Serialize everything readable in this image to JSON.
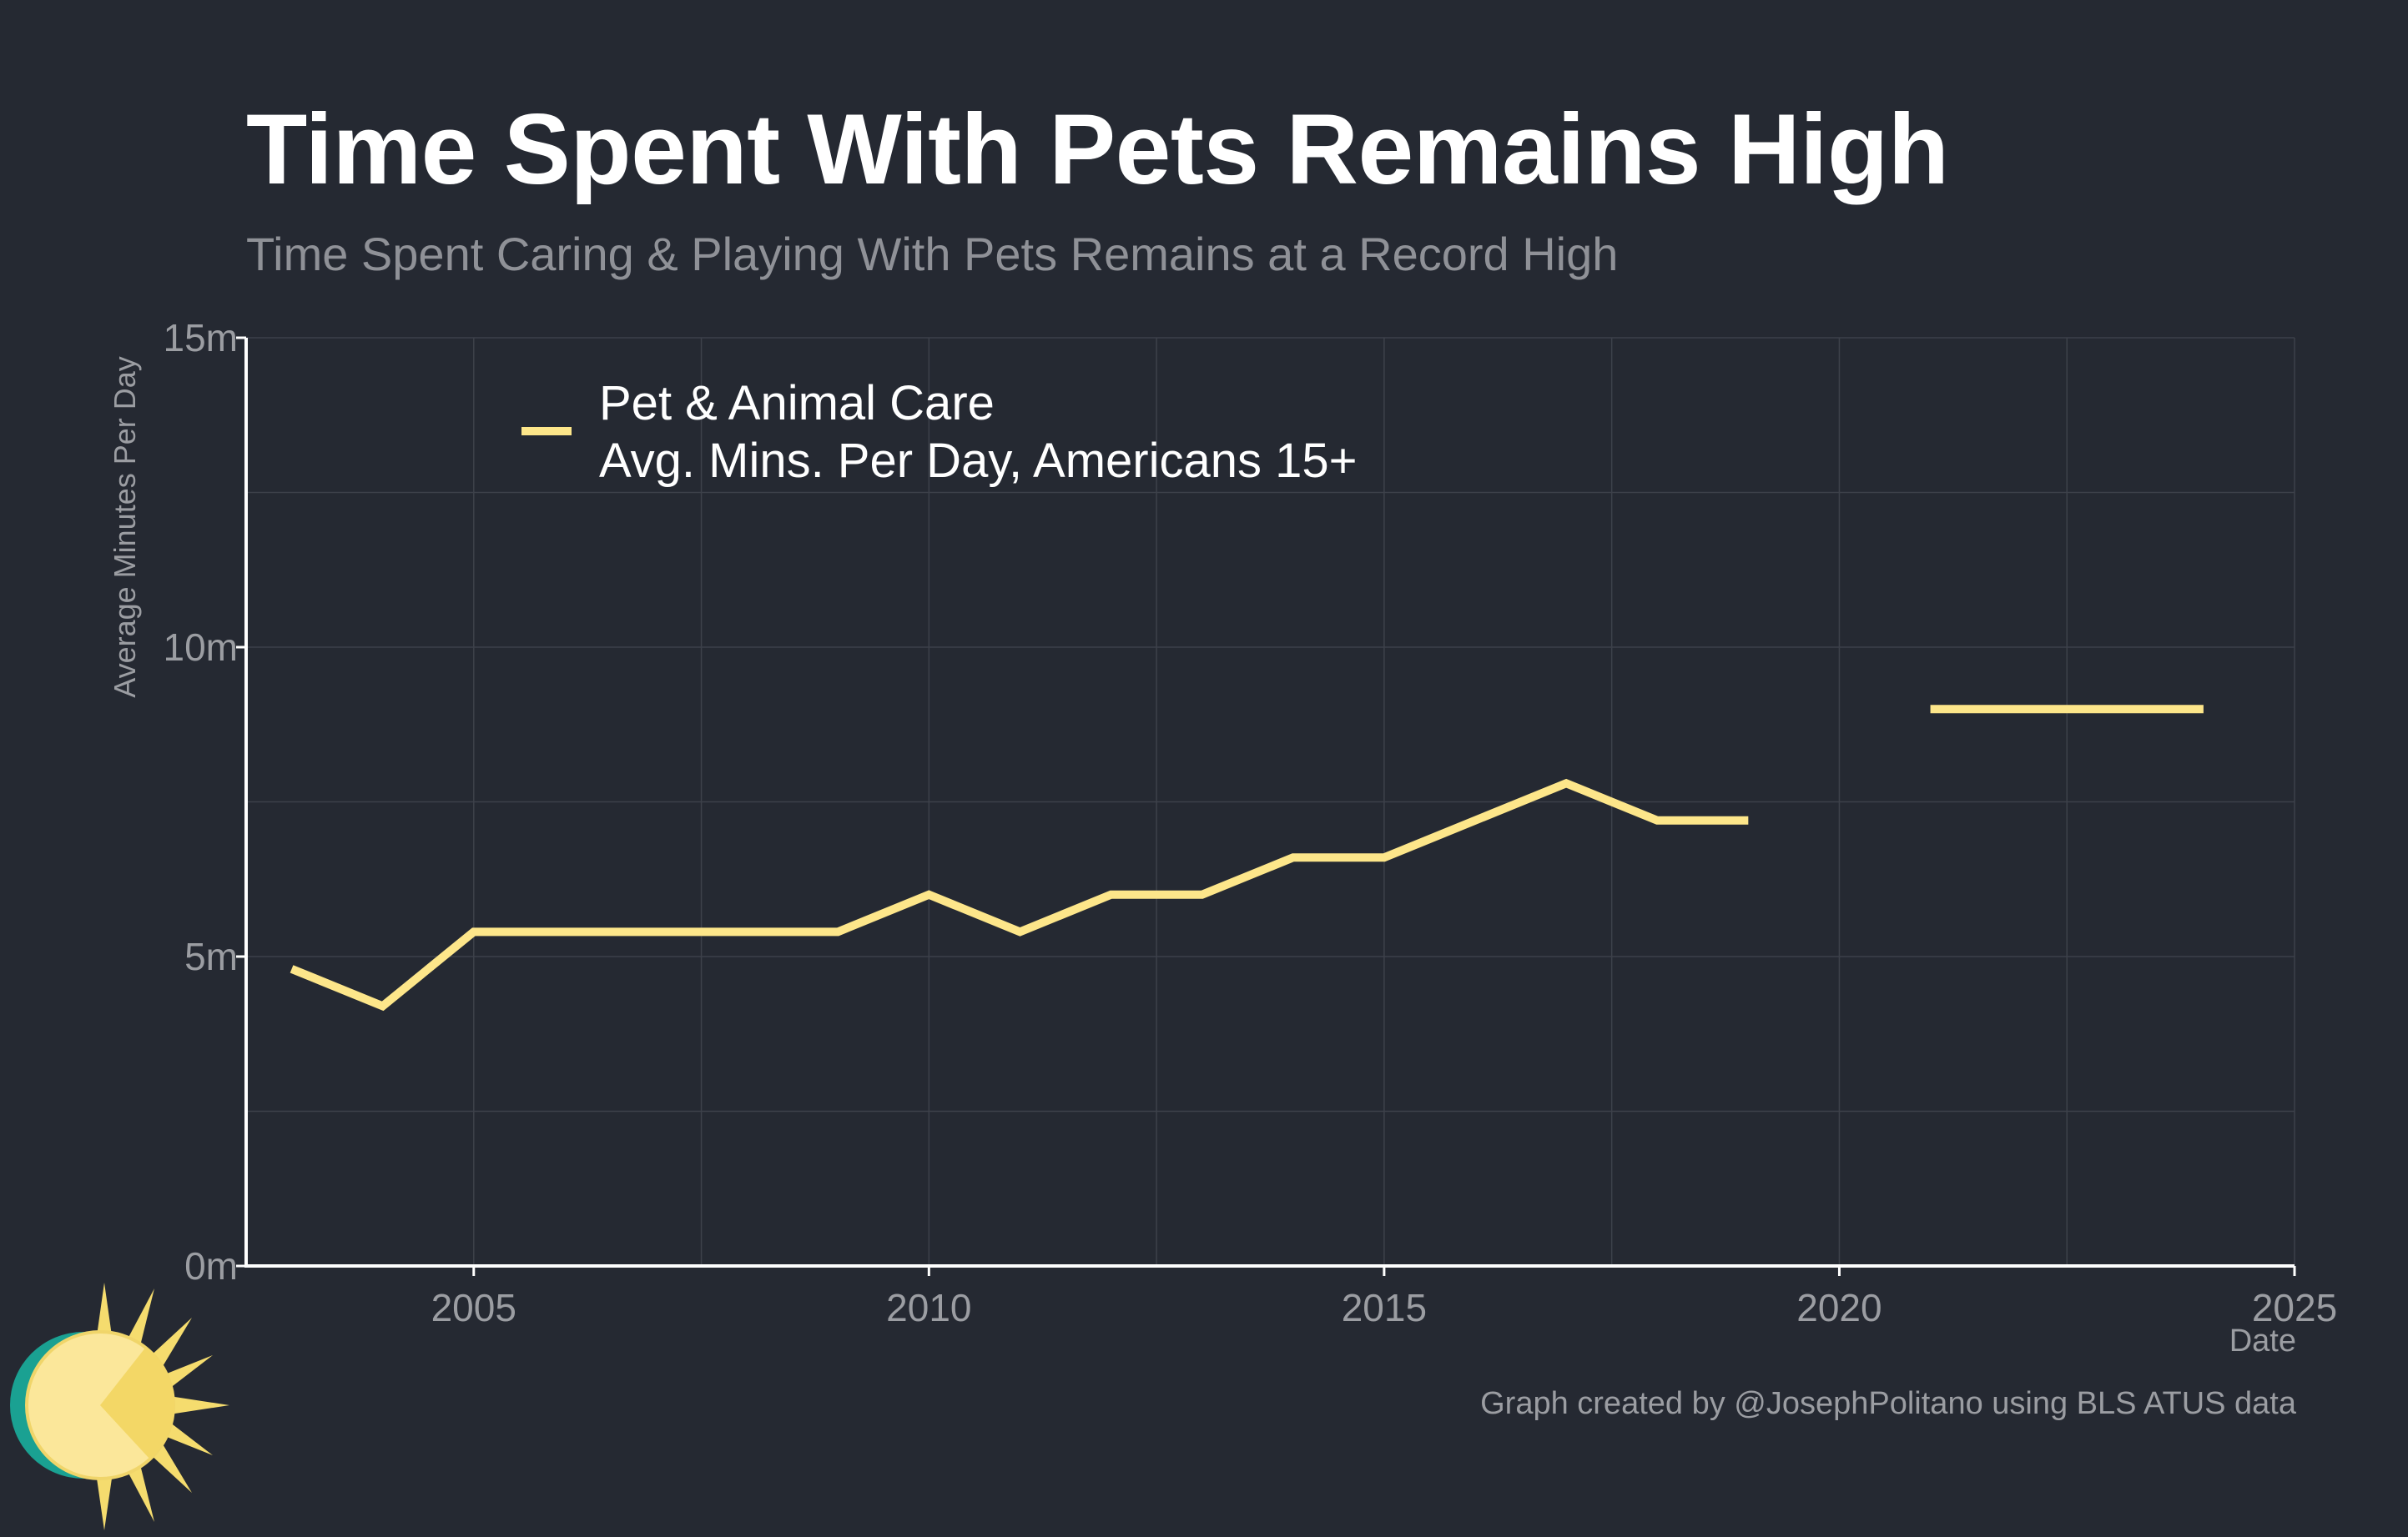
{
  "title": "Time Spent With Pets Remains High",
  "subtitle": "Time Spent Caring & Playing With Pets Remains at a Record High",
  "caption": "Graph created by @JosephPolitano using BLS ATUS data",
  "colors": {
    "background": "#252932",
    "line": "#fde68a",
    "grid": "#3d414a",
    "axis": "#ffffff",
    "tick_text": "#9b9da2"
  },
  "chart_data": {
    "type": "line",
    "title": "Time Spent With Pets Remains High",
    "xlabel": "Date",
    "ylabel": "Average Minutes Per Day",
    "xlim": [
      2002.5,
      2025
    ],
    "ylim": [
      0,
      15
    ],
    "x_ticks": [
      2005,
      2010,
      2015,
      2020,
      2025
    ],
    "x_tick_labels": [
      "2005",
      "2010",
      "2015",
      "2020",
      "2025"
    ],
    "y_ticks": [
      0,
      5,
      10,
      15
    ],
    "y_tick_labels": [
      "0m",
      "5m",
      "10m",
      "15m"
    ],
    "grid": true,
    "legend_position": "top-left",
    "series": [
      {
        "name": "Pet & Animal Care\nAvg. Mins. Per Day, Americans 15+",
        "color": "#fde68a",
        "segments": [
          {
            "x": [
              2003,
              2004,
              2005,
              2006,
              2007,
              2008,
              2009,
              2010,
              2011,
              2012,
              2013,
              2014,
              2015,
              2016,
              2017,
              2018,
              2019
            ],
            "y": [
              4.8,
              4.2,
              5.4,
              5.4,
              5.4,
              5.4,
              5.4,
              6.0,
              5.4,
              6.0,
              6.0,
              6.6,
              6.6,
              7.2,
              7.8,
              7.2,
              7.2
            ]
          },
          {
            "x": [
              2021,
              2022,
              2023,
              2024
            ],
            "y": [
              9.0,
              9.0,
              9.0,
              9.0
            ]
          }
        ]
      }
    ]
  }
}
